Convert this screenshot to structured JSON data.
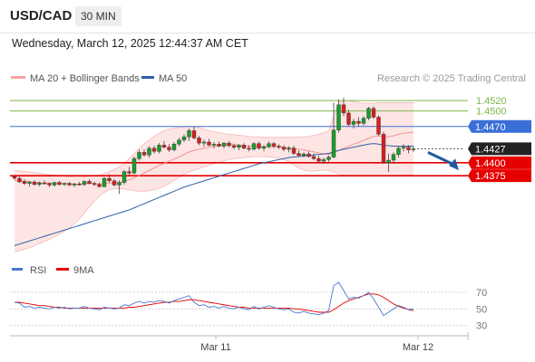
{
  "header": {
    "symbol": "USD/CAD",
    "timeframe": "30 MIN"
  },
  "timestamp": "Wednesday, March 12, 2025 12:44:37 AM CET",
  "legend": [
    {
      "label": "MA 20 + Bollinger Bands",
      "color": "#f4a3a0"
    },
    {
      "label": "MA 50",
      "color": "#2f5fa7"
    }
  ],
  "source": "Research © 2025 Trading Central",
  "colors": {
    "resistance": "#7db84a",
    "pivot": "#3a6fd8",
    "support": "#e60000",
    "last": "#222222",
    "arrow": "#1f5a9c",
    "rsi": "#4a78d0",
    "rsi_ma": "#e60000"
  },
  "chart_data": [
    {
      "type": "candlestick",
      "ylim": [
        1.4218,
        1.4543
      ],
      "x_ticks": [
        "Mar 11",
        "Mar 12"
      ],
      "levels": [
        {
          "label": "1.4520",
          "value": 1.452,
          "kind": "resistance"
        },
        {
          "label": "1.4500",
          "value": 1.45,
          "kind": "resistance"
        },
        {
          "label": "1.4470",
          "value": 1.447,
          "kind": "pivot"
        },
        {
          "label": "1.4427",
          "value": 1.4427,
          "kind": "last"
        },
        {
          "label": "1.4400",
          "value": 1.44,
          "kind": "support"
        },
        {
          "label": "1.4375",
          "value": 1.4375,
          "kind": "support"
        }
      ],
      "forecast": {
        "from": 1.4427,
        "to": 1.4375,
        "direction": "down"
      },
      "candles": [
        [
          1.4373,
          1.4376,
          1.4367,
          1.437
        ],
        [
          1.437,
          1.4373,
          1.4361,
          1.4363
        ],
        [
          1.4364,
          1.4368,
          1.4357,
          1.436
        ],
        [
          1.436,
          1.4365,
          1.4354,
          1.4363
        ],
        [
          1.4363,
          1.4366,
          1.4356,
          1.4358
        ],
        [
          1.4358,
          1.4364,
          1.4355,
          1.4361
        ],
        [
          1.4361,
          1.4366,
          1.4358,
          1.436
        ],
        [
          1.436,
          1.4362,
          1.4353,
          1.4357
        ],
        [
          1.4357,
          1.4363,
          1.4354,
          1.4362
        ],
        [
          1.4362,
          1.4365,
          1.4356,
          1.4358
        ],
        [
          1.4358,
          1.4362,
          1.4355,
          1.436
        ],
        [
          1.436,
          1.4363,
          1.4355,
          1.4357
        ],
        [
          1.4357,
          1.4361,
          1.4353,
          1.4359
        ],
        [
          1.4359,
          1.4363,
          1.4356,
          1.4358
        ],
        [
          1.4358,
          1.4366,
          1.4355,
          1.4364
        ],
        [
          1.4364,
          1.4368,
          1.4358,
          1.436
        ],
        [
          1.436,
          1.4364,
          1.4355,
          1.4358
        ],
        [
          1.4358,
          1.4362,
          1.4352,
          1.4354
        ],
        [
          1.4354,
          1.4372,
          1.4352,
          1.437
        ],
        [
          1.437,
          1.4378,
          1.4362,
          1.4365
        ],
        [
          1.4365,
          1.4369,
          1.4355,
          1.4357
        ],
        [
          1.4357,
          1.4366,
          1.434,
          1.4362
        ],
        [
          1.4362,
          1.4386,
          1.4358,
          1.4383
        ],
        [
          1.4383,
          1.4392,
          1.4376,
          1.438
        ],
        [
          1.438,
          1.4412,
          1.4378,
          1.4408
        ],
        [
          1.4408,
          1.4425,
          1.4404,
          1.442
        ],
        [
          1.442,
          1.4426,
          1.4412,
          1.4415
        ],
        [
          1.4415,
          1.4432,
          1.441,
          1.4428
        ],
        [
          1.4428,
          1.4433,
          1.4418,
          1.4422
        ],
        [
          1.4422,
          1.4438,
          1.4418,
          1.4434
        ],
        [
          1.4434,
          1.4442,
          1.4428,
          1.443
        ],
        [
          1.443,
          1.4436,
          1.4421,
          1.4425
        ],
        [
          1.4425,
          1.444,
          1.4422,
          1.4436
        ],
        [
          1.4436,
          1.4448,
          1.4432,
          1.4444
        ],
        [
          1.4444,
          1.4455,
          1.444,
          1.445
        ],
        [
          1.445,
          1.4466,
          1.4442,
          1.4462
        ],
        [
          1.4462,
          1.447,
          1.4445,
          1.4448
        ],
        [
          1.4448,
          1.4452,
          1.4434,
          1.4438
        ],
        [
          1.4438,
          1.4445,
          1.4431,
          1.444
        ],
        [
          1.444,
          1.4446,
          1.4432,
          1.4434
        ],
        [
          1.4434,
          1.444,
          1.4428,
          1.4436
        ],
        [
          1.4436,
          1.4441,
          1.443,
          1.4432
        ],
        [
          1.4432,
          1.444,
          1.4428,
          1.4438
        ],
        [
          1.4438,
          1.4442,
          1.443,
          1.4433
        ],
        [
          1.4433,
          1.4437,
          1.4426,
          1.443
        ],
        [
          1.443,
          1.4436,
          1.4424,
          1.4434
        ],
        [
          1.4434,
          1.4438,
          1.4426,
          1.4428
        ],
        [
          1.4428,
          1.4434,
          1.4422,
          1.4426
        ],
        [
          1.4426,
          1.444,
          1.4424,
          1.4437
        ],
        [
          1.4437,
          1.4441,
          1.4425,
          1.4428
        ],
        [
          1.4428,
          1.4434,
          1.4422,
          1.4431
        ],
        [
          1.4431,
          1.4441,
          1.4428,
          1.4437
        ],
        [
          1.4437,
          1.444,
          1.4428,
          1.4432
        ],
        [
          1.4432,
          1.4436,
          1.4426,
          1.443
        ],
        [
          1.443,
          1.4434,
          1.4422,
          1.4426
        ],
        [
          1.4426,
          1.4432,
          1.442,
          1.4428
        ],
        [
          1.4428,
          1.4433,
          1.4415,
          1.4418
        ],
        [
          1.4418,
          1.4424,
          1.4411,
          1.4414
        ],
        [
          1.4414,
          1.442,
          1.441,
          1.4417
        ],
        [
          1.4417,
          1.4422,
          1.441,
          1.4412
        ],
        [
          1.4412,
          1.4418,
          1.4405,
          1.4408
        ],
        [
          1.4408,
          1.4414,
          1.4401,
          1.4403
        ],
        [
          1.4403,
          1.441,
          1.4398,
          1.4406
        ],
        [
          1.4406,
          1.4414,
          1.4402,
          1.4411
        ],
        [
          1.4411,
          1.4516,
          1.4409,
          1.4463
        ],
        [
          1.4463,
          1.4522,
          1.4458,
          1.4512
        ],
        [
          1.4512,
          1.4526,
          1.449,
          1.4496
        ],
        [
          1.4496,
          1.4502,
          1.447,
          1.4474
        ],
        [
          1.4474,
          1.4485,
          1.4466,
          1.448
        ],
        [
          1.448,
          1.4488,
          1.447,
          1.4476
        ],
        [
          1.4476,
          1.449,
          1.4472,
          1.4486
        ],
        [
          1.4486,
          1.4508,
          1.4482,
          1.4505
        ],
        [
          1.4505,
          1.4509,
          1.4485,
          1.4488
        ],
        [
          1.4488,
          1.4492,
          1.4452,
          1.4455
        ],
        [
          1.4455,
          1.446,
          1.4398,
          1.44
        ],
        [
          1.44,
          1.4418,
          1.4382,
          1.4405
        ],
        [
          1.4405,
          1.442,
          1.4398,
          1.4416
        ],
        [
          1.4416,
          1.4432,
          1.441,
          1.4428
        ],
        [
          1.4428,
          1.4436,
          1.4422,
          1.443
        ],
        [
          1.443,
          1.4434,
          1.4418,
          1.4425
        ],
        [
          1.4425,
          1.4432,
          1.4421,
          1.4427
        ]
      ],
      "ma20": [
        1.4366,
        1.4365,
        1.4364,
        1.4363,
        1.4362,
        1.4362,
        1.4361,
        1.4361,
        1.436,
        1.436,
        1.436,
        1.436,
        1.4359,
        1.4359,
        1.436,
        1.436,
        1.436,
        1.4359,
        1.436,
        1.4361,
        1.4361,
        1.4362,
        1.4364,
        1.4367,
        1.4371,
        1.4375,
        1.438,
        1.4385,
        1.439,
        1.4395,
        1.4399,
        1.4403,
        1.4407,
        1.4411,
        1.4416,
        1.4421,
        1.4424,
        1.4426,
        1.4428,
        1.443,
        1.4432,
        1.4433,
        1.4434,
        1.4435,
        1.4435,
        1.4434,
        1.4433,
        1.4432,
        1.4432,
        1.4431,
        1.4431,
        1.4431,
        1.4431,
        1.4431,
        1.443,
        1.4429,
        1.4428,
        1.4426,
        1.4425,
        1.4423,
        1.4421,
        1.4419,
        1.4417,
        1.4416,
        1.4419,
        1.4424,
        1.4428,
        1.4432,
        1.4436,
        1.4439,
        1.4443,
        1.4447,
        1.4451,
        1.4452,
        1.445,
        1.445,
        1.4452,
        1.4455,
        1.4457,
        1.4458,
        1.4459
      ],
      "bb_upper": [
        1.4385,
        1.4384,
        1.4383,
        1.4382,
        1.4381,
        1.438,
        1.4378,
        1.4377,
        1.4376,
        1.4375,
        1.4374,
        1.4373,
        1.4372,
        1.4372,
        1.4373,
        1.4374,
        1.4375,
        1.4376,
        1.4379,
        1.4383,
        1.4387,
        1.4392,
        1.4399,
        1.4408,
        1.4418,
        1.4428,
        1.4436,
        1.4444,
        1.4451,
        1.4457,
        1.4462,
        1.4465,
        1.4467,
        1.4468,
        1.4469,
        1.447,
        1.447,
        1.4468,
        1.4465,
        1.4462,
        1.446,
        1.4458,
        1.4456,
        1.4455,
        1.4454,
        1.4453,
        1.4452,
        1.4451,
        1.445,
        1.445,
        1.4449,
        1.4449,
        1.4449,
        1.4449,
        1.4449,
        1.4449,
        1.4449,
        1.445,
        1.445,
        1.4451,
        1.4453,
        1.4455,
        1.4458,
        1.4461,
        1.449,
        1.4515,
        1.452,
        1.452,
        1.4518,
        1.4516,
        1.4515,
        1.4515,
        1.4515,
        1.4516,
        1.4516,
        1.4516,
        1.4516,
        1.4516,
        1.4516,
        1.4516,
        1.4516
      ],
      "bb_lower": [
        1.4228,
        1.423,
        1.4233,
        1.4236,
        1.424,
        1.4244,
        1.4248,
        1.4252,
        1.4257,
        1.4262,
        1.4268,
        1.4274,
        1.4282,
        1.4292,
        1.4303,
        1.4315,
        1.4326,
        1.4336,
        1.4343,
        1.4348,
        1.435,
        1.435,
        1.4349,
        1.4348,
        1.4346,
        1.4345,
        1.4345,
        1.4346,
        1.4348,
        1.4351,
        1.4355,
        1.436,
        1.4366,
        1.4372,
        1.4378,
        1.4382,
        1.4386,
        1.4389,
        1.4392,
        1.4395,
        1.4398,
        1.4401,
        1.4404,
        1.4406,
        1.4408,
        1.4409,
        1.441,
        1.4411,
        1.4412,
        1.4412,
        1.4412,
        1.4411,
        1.441,
        1.4409,
        1.4406,
        1.4402,
        1.4396,
        1.439,
        1.4386,
        1.4384,
        1.4384,
        1.4385,
        1.4386,
        1.4385,
        1.4382,
        1.4379,
        1.4376,
        1.4375,
        1.4374,
        1.4374,
        1.4374,
        1.4374,
        1.4374,
        1.4375,
        1.4375,
        1.4375,
        1.4375,
        1.4376,
        1.4376,
        1.4376,
        1.4376
      ],
      "ma50": [
        1.424,
        1.4243,
        1.4246,
        1.4249,
        1.4252,
        1.4255,
        1.4258,
        1.4261,
        1.4264,
        1.4267,
        1.427,
        1.4273,
        1.4276,
        1.4279,
        1.4282,
        1.4285,
        1.4288,
        1.4291,
        1.4294,
        1.4297,
        1.43,
        1.4303,
        1.4306,
        1.4309,
        1.4313,
        1.4317,
        1.4321,
        1.4325,
        1.4329,
        1.4333,
        1.4337,
        1.4341,
        1.4345,
        1.4349,
        1.4353,
        1.4356,
        1.4359,
        1.4362,
        1.4365,
        1.4368,
        1.4371,
        1.4374,
        1.4377,
        1.438,
        1.4383,
        1.4386,
        1.4389,
        1.4392,
        1.4395,
        1.4398,
        1.44,
        1.4402,
        1.4404,
        1.4406,
        1.4408,
        1.441,
        1.4411,
        1.4412,
        1.4413,
        1.4414,
        1.4415,
        1.4416,
        1.4417,
        1.4418,
        1.4421,
        1.4424,
        1.4426,
        1.4428,
        1.443,
        1.4432,
        1.4434,
        1.4436,
        1.4437,
        1.4436,
        1.4434,
        1.4433,
        1.4432,
        1.4432,
        1.4432,
        1.4432,
        1.4432
      ]
    },
    {
      "type": "line",
      "title": "RSI",
      "series": [
        {
          "name": "RSI",
          "values": [
            58,
            57,
            52,
            53,
            51,
            52,
            51,
            50,
            52,
            51,
            52,
            50,
            51,
            51,
            53,
            51,
            50,
            49,
            52,
            51,
            50,
            51,
            55,
            54,
            57,
            59,
            57,
            59,
            58,
            60,
            59,
            57,
            60,
            62,
            64,
            66,
            58,
            54,
            55,
            52,
            53,
            51,
            53,
            51,
            50,
            52,
            50,
            49,
            53,
            50,
            52,
            54,
            52,
            50,
            49,
            50,
            46,
            45,
            47,
            45,
            44,
            43,
            45,
            48,
            78,
            82,
            72,
            62,
            64,
            63,
            66,
            70,
            62,
            52,
            42,
            46,
            50,
            54,
            52,
            49,
            50
          ]
        },
        {
          "name": "9MA",
          "values": [
            58,
            58,
            57,
            56,
            55,
            54,
            54,
            53,
            52,
            52,
            51,
            51,
            51,
            51,
            51,
            51,
            51,
            51,
            51,
            51,
            51,
            51,
            51,
            52,
            52,
            53,
            54,
            55,
            56,
            57,
            58,
            58,
            59,
            59,
            60,
            61,
            61,
            60,
            59,
            58,
            57,
            56,
            55,
            54,
            53,
            52,
            52,
            51,
            51,
            51,
            51,
            51,
            51,
            51,
            51,
            51,
            50,
            50,
            49,
            48,
            47,
            46,
            46,
            46,
            49,
            53,
            57,
            60,
            62,
            64,
            66,
            68,
            68,
            67,
            64,
            60,
            56,
            53,
            51,
            49,
            48
          ]
        }
      ],
      "ylim": [
        22,
        82
      ],
      "levels": [
        70,
        50,
        30
      ],
      "tick_labels": [
        "70",
        "50",
        "30"
      ]
    }
  ]
}
